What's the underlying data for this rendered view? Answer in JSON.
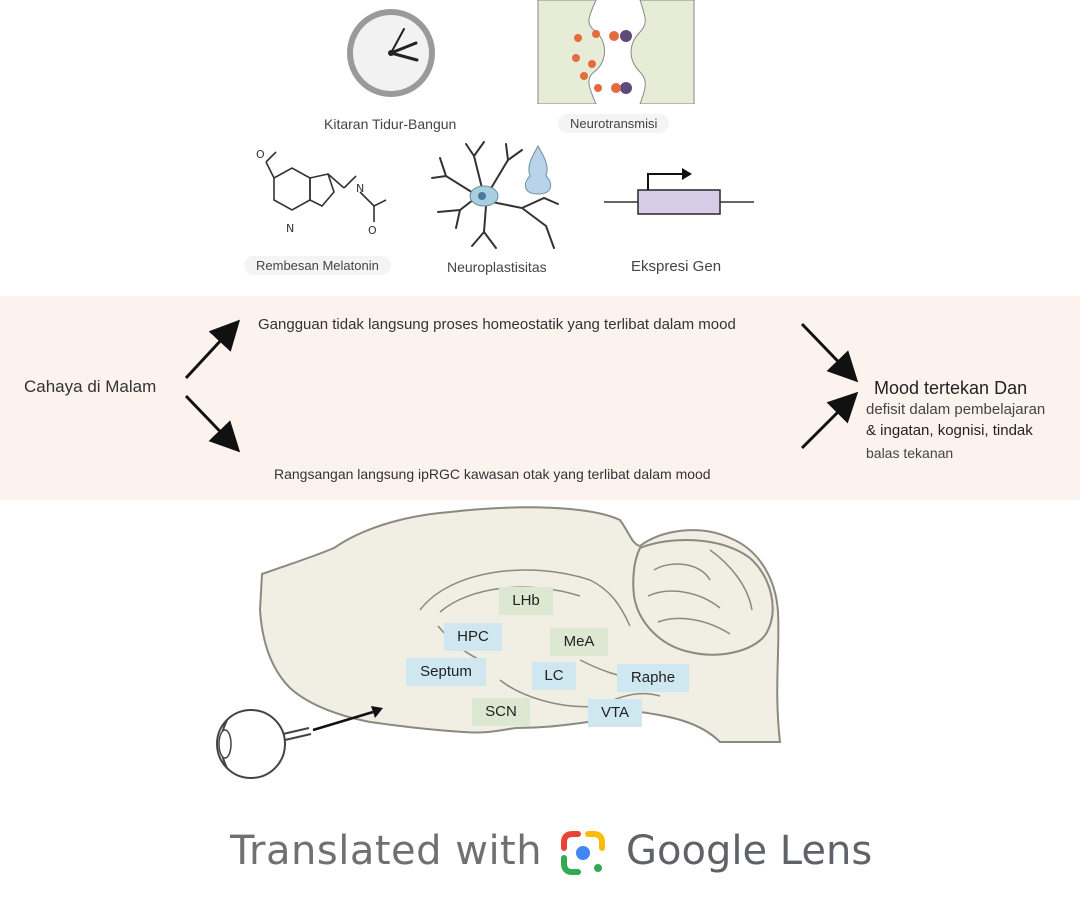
{
  "icons": {
    "clock_label": "Kitaran Tidur-Bangun",
    "synapse_label": "Neurotransmisi",
    "melatonin_label": "Rembesan Melatonin",
    "neuron_label": "Neuroplastisitas",
    "gene_label": "Ekspresi Gen"
  },
  "flow": {
    "source": "Cahaya di Malam",
    "indirect": "Gangguan tidak langsung proses homeostatik yang terlibat dalam mood",
    "direct": "Rangsangan langsung ipRGC kawasan otak yang terlibat dalam mood",
    "outcome_title": "Mood tertekan Dan",
    "outcome_line2": "defisit dalam pembelajaran",
    "outcome_line3": "& ingatan, kognisi, tindak",
    "outcome_line4": "balas tekanan"
  },
  "brain": {
    "regions": [
      {
        "label": "LHb",
        "color": "#dce8d2"
      },
      {
        "label": "HPC",
        "color": "#cfe7f0"
      },
      {
        "label": "MeA",
        "color": "#dce8d2"
      },
      {
        "label": "Septum",
        "color": "#cfe7f0"
      },
      {
        "label": "LC",
        "color": "#cfe7f0"
      },
      {
        "label": "Raphe",
        "color": "#cfe7f0"
      },
      {
        "label": "SCN",
        "color": "#dce8d2"
      },
      {
        "label": "VTA",
        "color": "#cfe7f0"
      }
    ]
  },
  "footer": {
    "prefix": "Translated with",
    "brand": "Google Lens"
  },
  "colors": {
    "band": "#fdf3ee",
    "brain_fill": "#f1eee4",
    "brain_stroke": "#8a8a80",
    "green_region": "#dce8d2",
    "blue_region": "#cfe7f0"
  }
}
